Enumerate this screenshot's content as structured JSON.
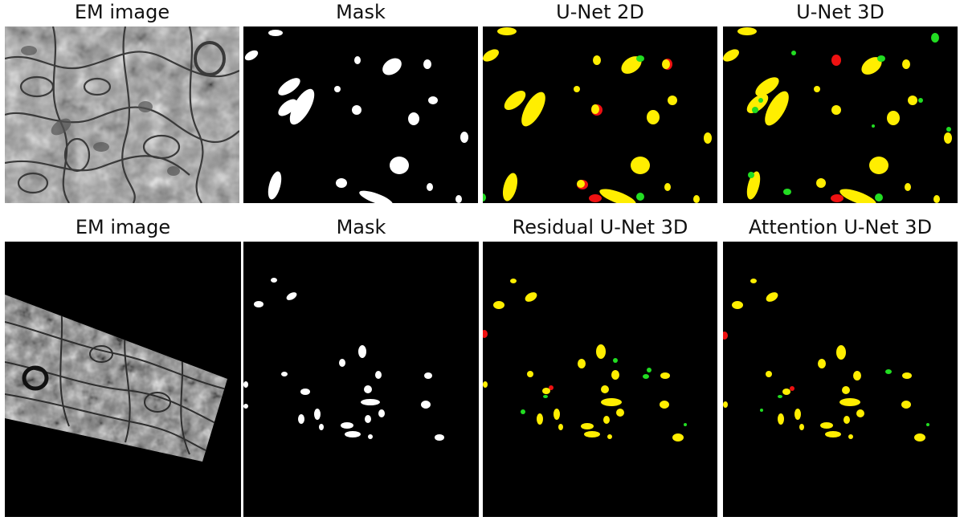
{
  "colors": {
    "background": "#000000",
    "mask": "#ffffff",
    "true_positive": "#ffee00",
    "false_negative": "#ee1111",
    "false_positive": "#22dd22"
  },
  "rows": [
    {
      "panels": [
        {
          "caption": "EM image"
        },
        {
          "caption": "Mask"
        },
        {
          "caption": "U-Net 2D"
        },
        {
          "caption": "U-Net 3D"
        }
      ]
    },
    {
      "panels": [
        {
          "caption": "EM image"
        },
        {
          "caption": "Mask"
        },
        {
          "caption": "Residual U-Net 3D"
        },
        {
          "caption": "Attention U-Net 3D"
        }
      ]
    }
  ]
}
